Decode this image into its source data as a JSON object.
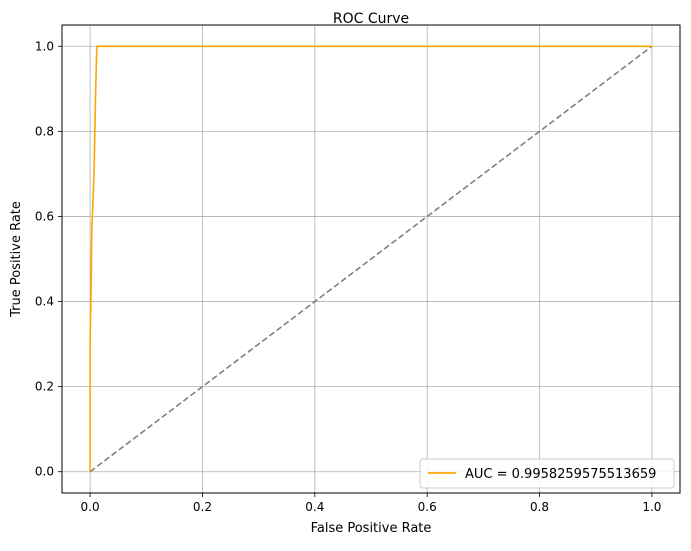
{
  "chart_data": {
    "type": "line",
    "title": "ROC Curve",
    "xlabel": "False Positive Rate",
    "ylabel": "True Positive Rate",
    "xlim": [
      -0.05,
      1.05
    ],
    "ylim": [
      -0.05,
      1.05
    ],
    "xticks": [
      0.0,
      0.2,
      0.4,
      0.6,
      0.8,
      1.0
    ],
    "yticks": [
      0.0,
      0.2,
      0.4,
      0.6,
      0.8,
      1.0
    ],
    "xtick_labels": [
      "0.0",
      "0.2",
      "0.4",
      "0.6",
      "0.8",
      "1.0"
    ],
    "ytick_labels": [
      "0.0",
      "0.2",
      "0.4",
      "0.6",
      "0.8",
      "1.0"
    ],
    "grid": true,
    "legend_position": "lower-right",
    "series": [
      {
        "name": "AUC = 0.9958259575513659",
        "color": "#ffa500",
        "line_style": "solid",
        "x": [
          0.0,
          0.0,
          0.002,
          0.003,
          0.005,
          0.007,
          0.01,
          0.012,
          1.0
        ],
        "y": [
          0.0,
          0.3,
          0.45,
          0.57,
          0.63,
          0.7,
          0.9,
          1.0,
          1.0
        ]
      },
      {
        "color": "#808080",
        "line_style": "dashed",
        "x": [
          0.0,
          1.0
        ],
        "y": [
          0.0,
          1.0
        ]
      }
    ]
  }
}
